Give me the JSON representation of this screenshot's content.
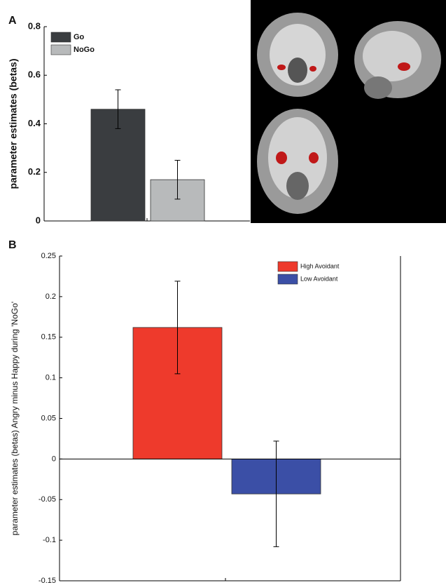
{
  "chart_data": [
    {
      "type": "bar",
      "panel": "A",
      "ylabel": "parameter estimates (betas)",
      "ylim": [
        0,
        0.8
      ],
      "yticks": [
        0,
        0.2,
        0.4,
        0.6,
        0.8
      ],
      "legend": "upper left",
      "series": [
        {
          "name": "Go",
          "color": "#3a3d40",
          "values": [
            0.46
          ],
          "errors": [
            0.08
          ]
        },
        {
          "name": "NoGo",
          "color": "#b8babb",
          "values": [
            0.17
          ],
          "errors": [
            0.08
          ]
        }
      ]
    },
    {
      "type": "bar",
      "panel": "B",
      "ylabel": "parameter estimates (betas) Angry minus Happy during 'NoGo'",
      "ylim": [
        -0.15,
        0.25
      ],
      "yticks": [
        -0.15,
        -0.1,
        -0.05,
        0,
        0.05,
        0.1,
        0.15,
        0.2,
        0.25
      ],
      "legend": "upper right",
      "series": [
        {
          "name": "High Avoidant",
          "color": "#ee3a2c",
          "values": [
            0.162
          ],
          "errors": [
            0.057
          ]
        },
        {
          "name": "Low Avoidant",
          "color": "#3b4fa6",
          "values": [
            -0.043
          ],
          "errors": [
            0.065
          ]
        }
      ]
    }
  ]
}
